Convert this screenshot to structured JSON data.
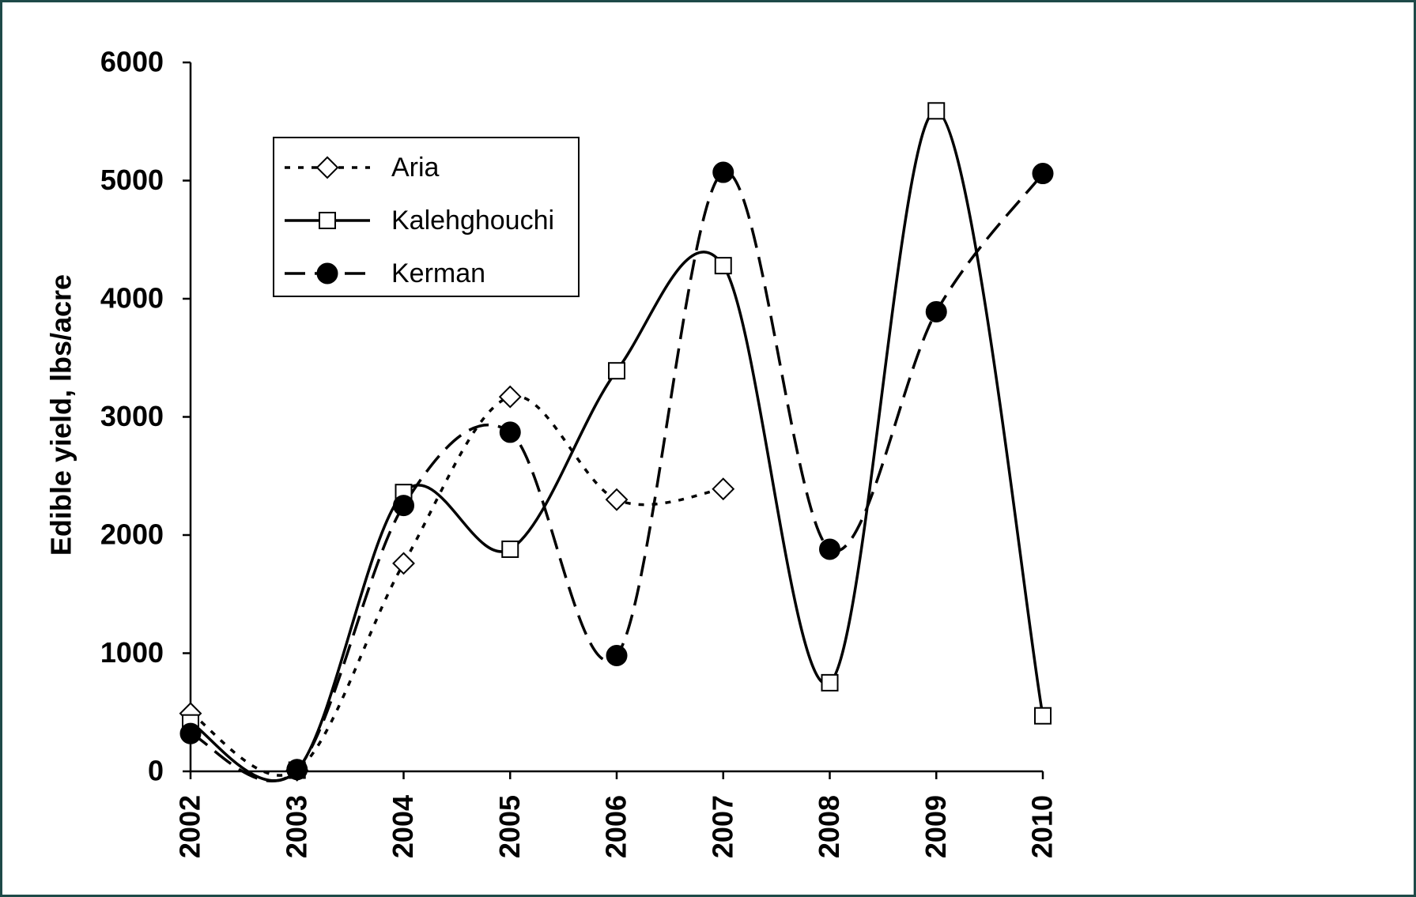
{
  "chart_data": {
    "type": "line",
    "y_label": "Edible yield, lbs/acre",
    "categories": [
      "2002",
      "2003",
      "2004",
      "2005",
      "2006",
      "2007",
      "2008",
      "2009",
      "2010"
    ],
    "series": [
      {
        "name": "Aria",
        "color": "#000000",
        "line_style": "dotted",
        "marker": "diamond",
        "values": [
          490,
          10,
          1760,
          3170,
          2300,
          2390,
          null,
          null,
          null
        ]
      },
      {
        "name": "Kalehghouchi",
        "color": "#000000",
        "line_style": "solid",
        "marker": "square",
        "values": [
          410,
          10,
          2360,
          1880,
          3390,
          4280,
          750,
          5590,
          470
        ]
      },
      {
        "name": "Kerman",
        "color": "#000000",
        "line_style": "dashed",
        "marker": "circle",
        "values": [
          320,
          15,
          2250,
          2870,
          980,
          5070,
          1880,
          3890,
          5060
        ]
      }
    ],
    "ylim": [
      0,
      6000
    ],
    "yticks": [
      0,
      1000,
      2000,
      3000,
      4000,
      5000,
      6000
    ],
    "smooth": true,
    "legend": "upper left"
  }
}
